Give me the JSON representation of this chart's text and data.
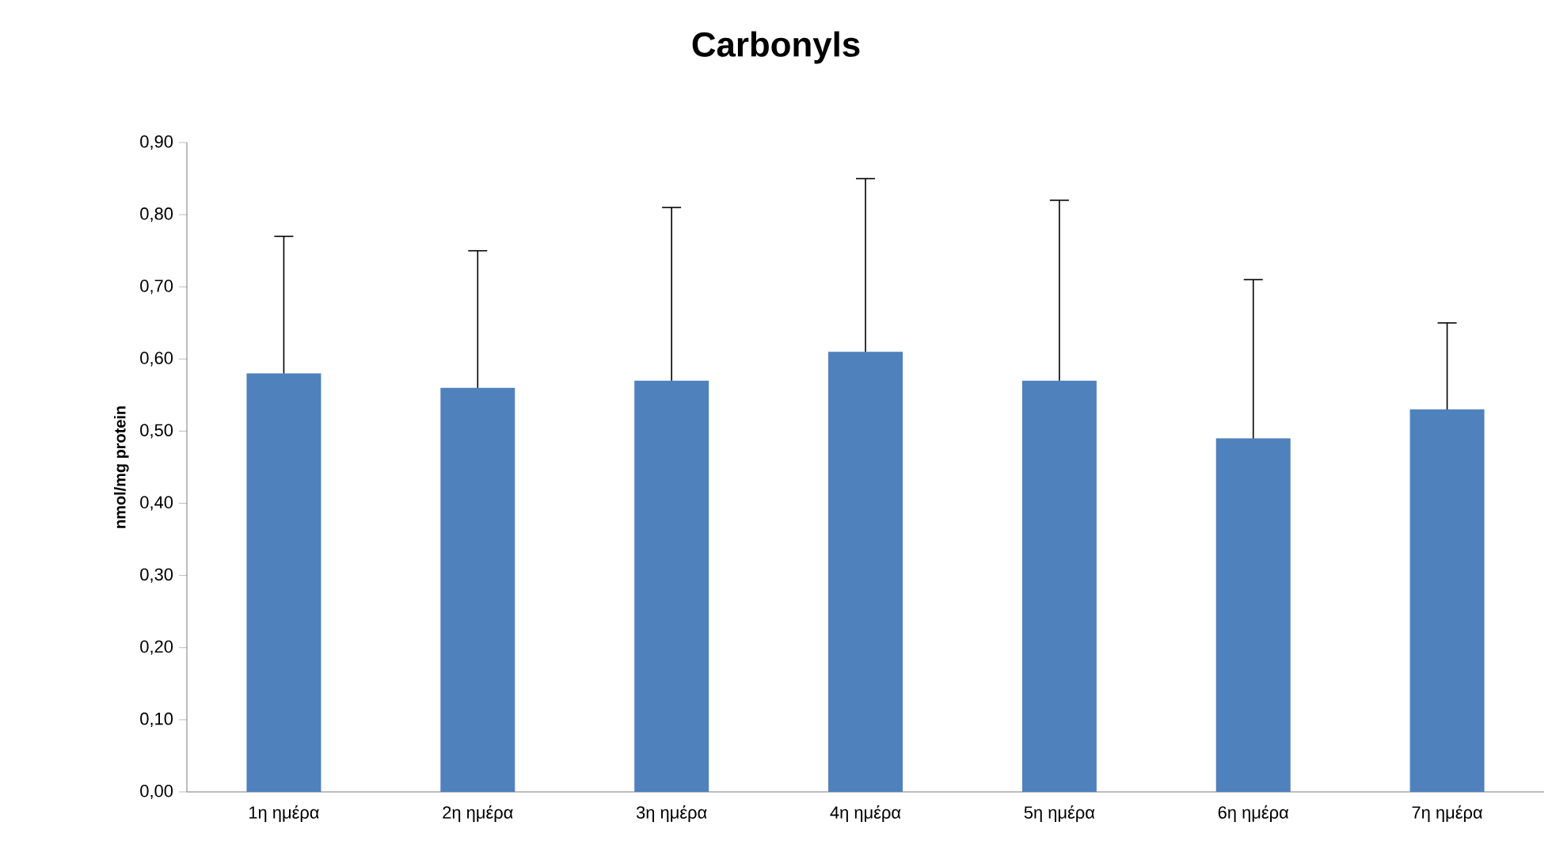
{
  "chart_data": {
    "type": "bar",
    "title": "Carbonyls",
    "ylabel": "nmol/mg protein",
    "categories": [
      "1η ημέρα",
      "2η ημέρα",
      "3η ημέρα",
      "4η ημέρα",
      "5η ημέρα",
      "6η ημέρα",
      "7η ημέρα"
    ],
    "values": [
      0.58,
      0.56,
      0.57,
      0.61,
      0.57,
      0.49,
      0.53
    ],
    "errors": [
      [
        0.58,
        0.77
      ],
      [
        0.56,
        0.75
      ],
      [
        0.57,
        0.81
      ],
      [
        0.61,
        0.85
      ],
      [
        0.57,
        0.82
      ],
      [
        0.49,
        0.71
      ],
      [
        0.53,
        0.65
      ]
    ],
    "color": "#4f81bd",
    "ylim": [
      0,
      0.9
    ],
    "yticks": [
      {
        "value": 0,
        "label": "0,00"
      },
      {
        "value": 0.1,
        "label": "0,10"
      },
      {
        "value": 0.2,
        "label": "0,20"
      },
      {
        "value": 0.3,
        "label": "0,30"
      },
      {
        "value": 0.4,
        "label": "0,40"
      },
      {
        "value": 0.5,
        "label": "0,50"
      },
      {
        "value": 0.6,
        "label": "0,60"
      },
      {
        "value": 0.7,
        "label": "0,70"
      },
      {
        "value": 0.8,
        "label": "0,80"
      },
      {
        "value": 0.9,
        "label": "0,90"
      }
    ],
    "grid": false
  }
}
